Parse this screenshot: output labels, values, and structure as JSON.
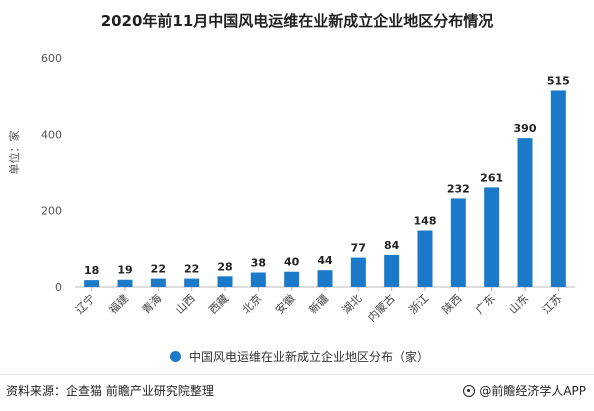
{
  "title": "2020年前11月中国风电运维在业新成立企业地区分布情况",
  "footer": {
    "source": "资料来源：企查猫 前瞻产业研究院整理",
    "brand": "@前瞻经济学人APP"
  },
  "colors": {
    "bar": "#1a7ac9",
    "axis": "#999999",
    "grid": "#e8e8e8"
  },
  "chart_data": {
    "type": "bar",
    "categories": [
      "辽宁",
      "福建",
      "青海",
      "山西",
      "西藏",
      "北京",
      "安徽",
      "新疆",
      "湖北",
      "内蒙古",
      "浙江",
      "陕西",
      "广东",
      "山东",
      "江苏"
    ],
    "series": [
      {
        "name": "中国风电运维在业新成立企业地区分布（家）",
        "values": [
          18,
          19,
          22,
          22,
          28,
          38,
          40,
          44,
          77,
          84,
          148,
          232,
          261,
          390,
          515
        ]
      }
    ],
    "title": "2020年前11月中国风电运维在业新成立企业地区分布情况",
    "xlabel": "",
    "ylabel": "单位：家",
    "ylim": [
      0,
      600
    ],
    "yticks": [
      0,
      200,
      400,
      600
    ],
    "grid": false,
    "legend_position": "bottom"
  }
}
